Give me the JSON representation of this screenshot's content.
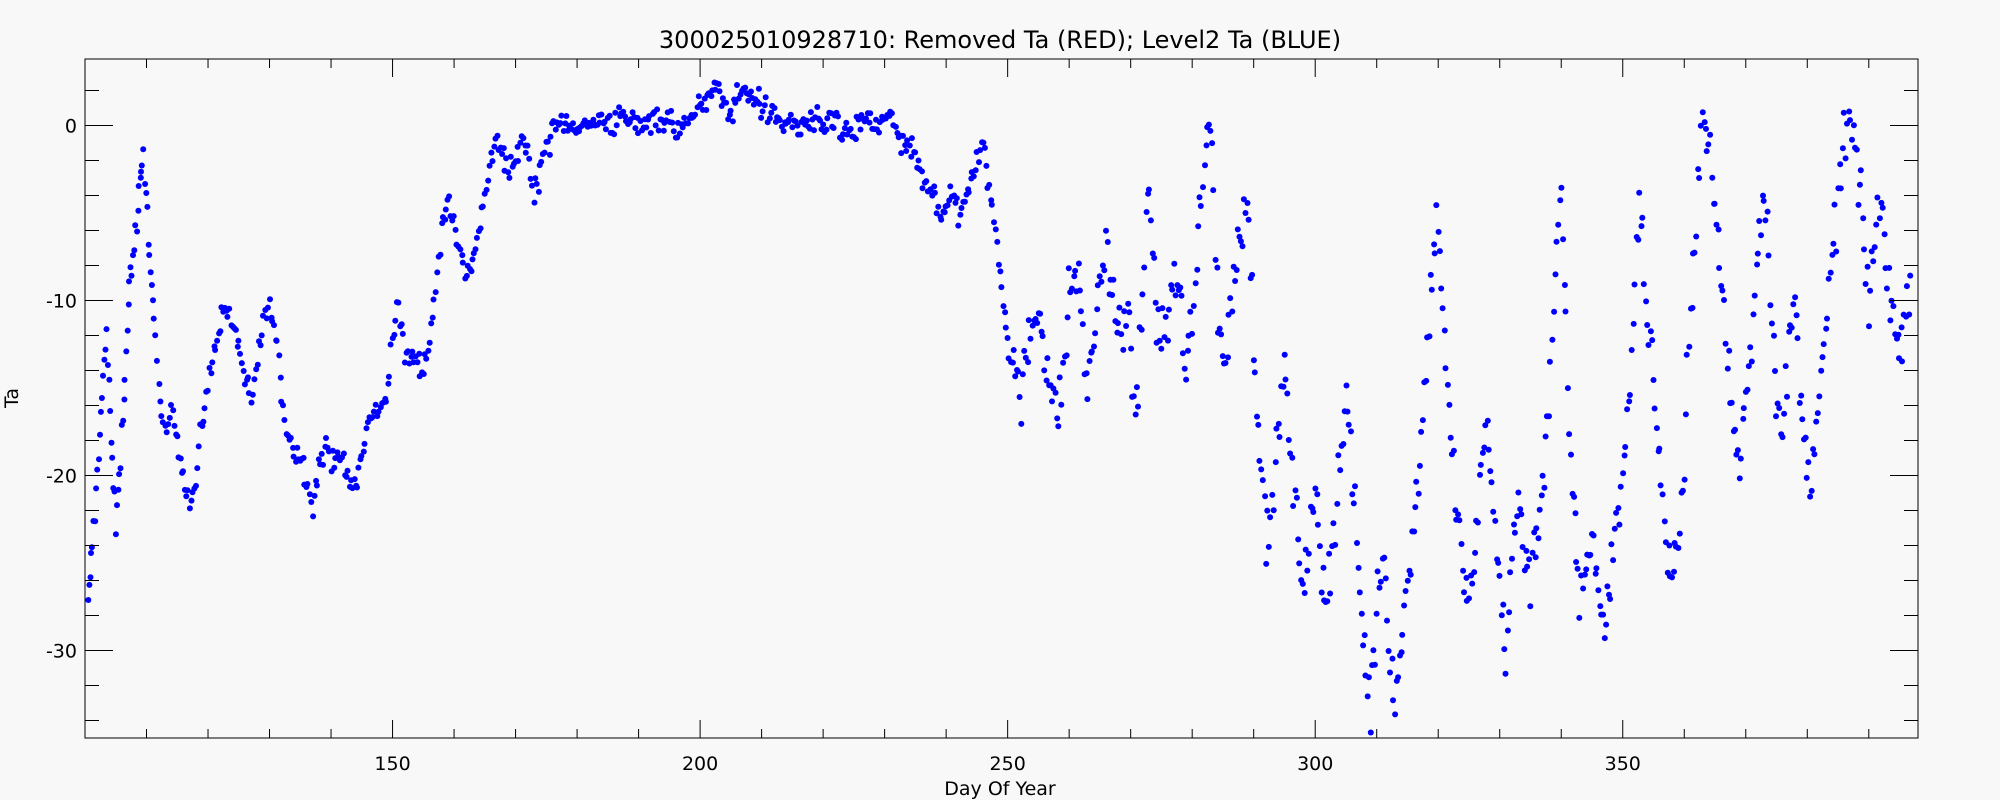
{
  "chart_data": {
    "type": "scatter",
    "title": "300025010928710: Removed Ta (RED); Level2 Ta (BLUE)",
    "xlabel": "Day Of Year",
    "ylabel": "Ta",
    "xlim": [
      100,
      398
    ],
    "ylim": [
      -35,
      3.8
    ],
    "xticks": [
      150,
      200,
      250,
      300,
      350
    ],
    "yticks": [
      0,
      -10,
      -20,
      -30
    ],
    "xtick_labels": [
      "150",
      "200",
      "250",
      "300",
      "350"
    ],
    "ytick_labels": [
      "0",
      "-10",
      "-20",
      "-30"
    ],
    "grid": false,
    "series": [
      {
        "color": "#0000ff",
        "trend": [
          [
            100.5,
            -27.5
          ],
          [
            101.2,
            -24.0
          ],
          [
            102.0,
            -20.0
          ],
          [
            102.8,
            -15.0
          ],
          [
            103.5,
            -12.0
          ],
          [
            104.3,
            -18.0
          ],
          [
            105.0,
            -23.0
          ],
          [
            105.8,
            -19.0
          ],
          [
            106.5,
            -14.0
          ],
          [
            107.2,
            -9.0
          ],
          [
            108.0,
            -7.0
          ],
          [
            108.8,
            -4.0
          ],
          [
            109.5,
            -2.0
          ],
          [
            110.3,
            -6.0
          ],
          [
            111.0,
            -10.0
          ],
          [
            112.0,
            -15.0
          ],
          [
            113.0,
            -18.0
          ],
          [
            114.0,
            -16.0
          ],
          [
            115.0,
            -17.5
          ],
          [
            116.0,
            -20.0
          ],
          [
            117.0,
            -21.5
          ],
          [
            118.0,
            -20.5
          ],
          [
            119.0,
            -17.0
          ],
          [
            120.0,
            -15.0
          ],
          [
            121.0,
            -13.0
          ],
          [
            122.0,
            -11.0
          ],
          [
            123.0,
            -10.5
          ],
          [
            124.0,
            -11.5
          ],
          [
            125.0,
            -12.5
          ],
          [
            126.0,
            -14.5
          ],
          [
            127.0,
            -16.0
          ],
          [
            128.0,
            -13.5
          ],
          [
            129.0,
            -11.0
          ],
          [
            130.0,
            -10.3
          ],
          [
            131.0,
            -12.0
          ],
          [
            132.0,
            -15.5
          ],
          [
            133.0,
            -17.5
          ],
          [
            134.0,
            -18.5
          ],
          [
            135.0,
            -19.0
          ],
          [
            136.0,
            -20.0
          ],
          [
            137.0,
            -21.5
          ],
          [
            138.0,
            -19.5
          ],
          [
            139.0,
            -18.5
          ],
          [
            140.0,
            -19.0
          ],
          [
            141.0,
            -18.5
          ],
          [
            142.0,
            -19.5
          ],
          [
            143.0,
            -20.5
          ],
          [
            144.0,
            -20.5
          ],
          [
            145.0,
            -19.0
          ],
          [
            146.0,
            -17.0
          ],
          [
            147.0,
            -16.5
          ],
          [
            148.0,
            -16.0
          ],
          [
            149.0,
            -15.5
          ],
          [
            150.0,
            -12.0
          ],
          [
            151.0,
            -10.5
          ],
          [
            152.0,
            -13.0
          ],
          [
            153.0,
            -13.5
          ],
          [
            154.0,
            -13.0
          ],
          [
            155.0,
            -14.0
          ],
          [
            156.0,
            -12.0
          ],
          [
            157.0,
            -9.5
          ],
          [
            158.0,
            -6.0
          ],
          [
            159.0,
            -4.0
          ],
          [
            160.0,
            -5.5
          ],
          [
            161.0,
            -7.0
          ],
          [
            162.0,
            -9.0
          ],
          [
            163.0,
            -7.5
          ],
          [
            164.0,
            -6.0
          ],
          [
            165.0,
            -4.0
          ],
          [
            166.0,
            -2.0
          ],
          [
            167.0,
            -1.0
          ],
          [
            168.0,
            -1.5
          ],
          [
            169.0,
            -3.0
          ],
          [
            170.0,
            -2.0
          ],
          [
            171.0,
            -0.5
          ],
          [
            172.0,
            -1.5
          ],
          [
            173.0,
            -4.0
          ],
          [
            174.0,
            -2.5
          ],
          [
            175.0,
            -1.0
          ],
          [
            176.0,
            -0.5
          ],
          [
            177.0,
            0.0
          ],
          [
            178.0,
            0.3
          ],
          [
            179.0,
            0.0
          ],
          [
            180.0,
            0.2
          ],
          [
            181.0,
            -0.2
          ],
          [
            182.0,
            0.0
          ],
          [
            183.0,
            0.3
          ],
          [
            184.0,
            0.2
          ],
          [
            185.0,
            0.4
          ],
          [
            186.0,
            0.0
          ],
          [
            187.0,
            0.5
          ],
          [
            188.0,
            0.2
          ],
          [
            189.0,
            0.4
          ],
          [
            190.0,
            -0.3
          ],
          [
            191.0,
            0.5
          ],
          [
            192.0,
            0.3
          ],
          [
            193.0,
            0.6
          ],
          [
            194.0,
            0.2
          ],
          [
            195.0,
            0.5
          ],
          [
            196.0,
            -0.8
          ],
          [
            197.0,
            0.4
          ],
          [
            198.0,
            0.5
          ],
          [
            199.0,
            0.2
          ],
          [
            200.0,
            1.2
          ],
          [
            201.0,
            1.5
          ],
          [
            202.0,
            1.8
          ],
          [
            203.0,
            2.0
          ],
          [
            204.0,
            1.2
          ],
          [
            205.0,
            0.8
          ],
          [
            206.0,
            1.5
          ],
          [
            207.0,
            2.3
          ],
          [
            208.0,
            1.5
          ],
          [
            209.0,
            1.8
          ],
          [
            210.0,
            1.0
          ],
          [
            211.0,
            0.8
          ],
          [
            212.0,
            0.5
          ],
          [
            213.0,
            0.3
          ],
          [
            214.0,
            0.0
          ],
          [
            215.0,
            0.2
          ],
          [
            216.0,
            -0.3
          ],
          [
            217.0,
            0.4
          ],
          [
            218.0,
            0.0
          ],
          [
            219.0,
            0.2
          ],
          [
            220.0,
            -0.5
          ],
          [
            221.0,
            0.6
          ],
          [
            222.0,
            0.3
          ],
          [
            223.0,
            -0.8
          ],
          [
            224.0,
            0.0
          ],
          [
            225.0,
            -1.0
          ],
          [
            226.0,
            0.2
          ],
          [
            227.0,
            0.6
          ],
          [
            228.0,
            0.0
          ],
          [
            229.0,
            -0.3
          ],
          [
            230.0,
            0.5
          ],
          [
            231.0,
            0.8
          ],
          [
            232.0,
            -0.5
          ],
          [
            233.0,
            -1.5
          ],
          [
            234.0,
            -1.0
          ],
          [
            235.0,
            -2.0
          ],
          [
            236.0,
            -3.0
          ],
          [
            237.0,
            -4.0
          ],
          [
            238.0,
            -3.5
          ],
          [
            239.0,
            -5.0
          ],
          [
            240.0,
            -4.5
          ],
          [
            241.0,
            -3.8
          ],
          [
            242.0,
            -5.5
          ],
          [
            243.0,
            -4.0
          ],
          [
            244.0,
            -3.0
          ],
          [
            245.0,
            -2.0
          ],
          [
            246.0,
            -1.0
          ],
          [
            247.0,
            -3.5
          ],
          [
            248.0,
            -6.0
          ],
          [
            249.0,
            -9.0
          ],
          [
            250.0,
            -12.0
          ],
          [
            251.0,
            -13.0
          ],
          [
            252.0,
            -16.0
          ],
          [
            253.0,
            -14.0
          ],
          [
            254.0,
            -11.0
          ],
          [
            255.0,
            -10.0
          ],
          [
            256.0,
            -12.5
          ],
          [
            257.0,
            -15.0
          ],
          [
            258.0,
            -17.0
          ],
          [
            259.0,
            -14.0
          ],
          [
            260.0,
            -10.0
          ],
          [
            261.0,
            -8.0
          ],
          [
            262.0,
            -11.0
          ],
          [
            263.0,
            -15.0
          ],
          [
            264.0,
            -12.0
          ],
          [
            265.0,
            -9.0
          ],
          [
            266.0,
            -7.0
          ],
          [
            267.0,
            -10.0
          ],
          [
            268.0,
            -12.0
          ],
          [
            269.0,
            -10.5
          ],
          [
            270.0,
            -13.0
          ],
          [
            271.0,
            -17.0
          ],
          [
            272.0,
            -9.0
          ],
          [
            273.0,
            -3.0
          ],
          [
            274.0,
            -10.0
          ],
          [
            275.0,
            -13.0
          ],
          [
            276.0,
            -11.0
          ],
          [
            277.0,
            -8.0
          ],
          [
            278.0,
            -10.0
          ],
          [
            279.0,
            -14.0
          ],
          [
            280.0,
            -12.0
          ],
          [
            281.0,
            -6.0
          ],
          [
            282.0,
            -1.0
          ],
          [
            283.0,
            0.2
          ],
          [
            284.0,
            -9.0
          ],
          [
            285.0,
            -14.0
          ],
          [
            286.0,
            -12.0
          ],
          [
            287.0,
            -8.0
          ],
          [
            288.0,
            -6.0
          ],
          [
            289.0,
            -4.0
          ],
          [
            290.0,
            -12.0
          ],
          [
            291.0,
            -18.0
          ],
          [
            292.0,
            -24.0
          ],
          [
            293.0,
            -22.0
          ],
          [
            294.0,
            -17.0
          ],
          [
            295.0,
            -14.0
          ],
          [
            296.0,
            -19.0
          ],
          [
            297.0,
            -23.0
          ],
          [
            298.0,
            -26.0
          ],
          [
            299.0,
            -24.0
          ],
          [
            300.0,
            -21.0
          ],
          [
            301.0,
            -25.0
          ],
          [
            302.0,
            -27.0
          ],
          [
            303.0,
            -23.0
          ],
          [
            304.0,
            -19.0
          ],
          [
            305.0,
            -15.0
          ],
          [
            306.0,
            -20.0
          ],
          [
            307.0,
            -25.0
          ],
          [
            308.0,
            -30.0
          ],
          [
            309.0,
            -33.5
          ],
          [
            310.0,
            -28.0
          ],
          [
            311.0,
            -24.0
          ],
          [
            312.0,
            -29.0
          ],
          [
            313.0,
            -33.0
          ],
          [
            314.0,
            -30.0
          ],
          [
            315.0,
            -26.0
          ],
          [
            316.0,
            -22.0
          ],
          [
            317.0,
            -19.0
          ],
          [
            318.0,
            -14.0
          ],
          [
            319.0,
            -8.0
          ],
          [
            320.0,
            -5.0
          ],
          [
            321.0,
            -12.0
          ],
          [
            322.0,
            -18.0
          ],
          [
            323.0,
            -22.0
          ],
          [
            324.0,
            -25.0
          ],
          [
            325.0,
            -28.0
          ],
          [
            326.0,
            -24.0
          ],
          [
            327.0,
            -20.0
          ],
          [
            328.0,
            -17.0
          ],
          [
            329.0,
            -22.0
          ],
          [
            330.0,
            -26.0
          ],
          [
            331.0,
            -30.0
          ],
          [
            332.0,
            -25.0
          ],
          [
            333.0,
            -21.0
          ],
          [
            334.0,
            -24.0
          ],
          [
            335.0,
            -26.0
          ],
          [
            336.0,
            -23.0
          ],
          [
            337.0,
            -20.0
          ],
          [
            338.0,
            -16.0
          ],
          [
            339.0,
            -8.0
          ],
          [
            340.0,
            -4.0
          ],
          [
            341.0,
            -15.0
          ],
          [
            342.0,
            -22.0
          ],
          [
            343.0,
            -27.0
          ],
          [
            344.0,
            -25.0
          ],
          [
            345.0,
            -23.0
          ],
          [
            346.0,
            -26.0
          ],
          [
            347.0,
            -29.0
          ],
          [
            348.0,
            -26.0
          ],
          [
            349.0,
            -23.0
          ],
          [
            350.0,
            -20.0
          ],
          [
            351.0,
            -16.0
          ],
          [
            352.0,
            -9.0
          ],
          [
            353.0,
            -4.0
          ],
          [
            354.0,
            -12.0
          ],
          [
            355.0,
            -14.0
          ],
          [
            356.0,
            -19.0
          ],
          [
            357.0,
            -24.0
          ],
          [
            358.0,
            -25.5
          ],
          [
            359.0,
            -24.0
          ],
          [
            360.0,
            -20.0
          ],
          [
            361.0,
            -10.0
          ],
          [
            362.0,
            -5.0
          ],
          [
            363.0,
            0.8
          ],
          [
            364.0,
            -1.0
          ],
          [
            365.0,
            -5.0
          ],
          [
            366.0,
            -9.0
          ],
          [
            367.0,
            -13.0
          ],
          [
            368.0,
            -17.0
          ],
          [
            369.0,
            -20.0
          ],
          [
            370.0,
            -15.0
          ],
          [
            371.0,
            -12.0
          ],
          [
            372.0,
            -7.0
          ],
          [
            373.0,
            -3.0
          ],
          [
            374.0,
            -9.0
          ],
          [
            375.0,
            -15.0
          ],
          [
            376.0,
            -18.0
          ],
          [
            377.0,
            -13.0
          ],
          [
            378.0,
            -10.0
          ],
          [
            379.0,
            -16.0
          ],
          [
            380.0,
            -20.0
          ],
          [
            381.0,
            -19.0
          ],
          [
            382.0,
            -16.0
          ],
          [
            383.0,
            -12.0
          ],
          [
            384.0,
            -8.0
          ],
          [
            385.0,
            -4.0
          ],
          [
            386.0,
            -1.0
          ],
          [
            387.0,
            0.3
          ],
          [
            388.0,
            -2.0
          ],
          [
            389.0,
            -6.0
          ],
          [
            390.0,
            -10.0
          ],
          [
            391.0,
            -7.0
          ],
          [
            392.0,
            -4.0
          ],
          [
            393.0,
            -8.0
          ],
          [
            394.0,
            -11.0
          ],
          [
            395.0,
            -13.0
          ],
          [
            396.0,
            -10.0
          ],
          [
            397.0,
            -8.0
          ]
        ]
      }
    ]
  }
}
